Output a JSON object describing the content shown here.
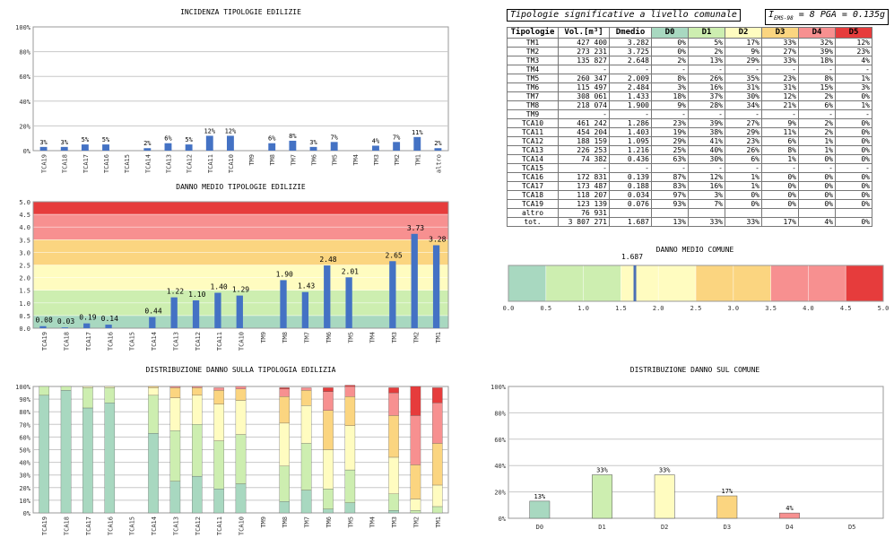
{
  "header": {
    "title": "Tipologie significative a livello comunale",
    "params_prefix": "I",
    "params_sub": "EMS-98",
    "params_rest": " = 8  PGA = 0.135g"
  },
  "colors": {
    "bar": "#4472c4",
    "D0": "#a8d8c0",
    "D1": "#cdeeb0",
    "D2": "#fffcc0",
    "D3": "#fbd580",
    "D4": "#f79090",
    "D5": "#e63c3c",
    "marker": "#4a6fb5"
  },
  "table": {
    "headers": [
      "Tipologie",
      "Vol.[m³]",
      "Dmedio",
      "D0",
      "D1",
      "D2",
      "D3",
      "D4",
      "D5"
    ],
    "rows": [
      [
        "TM1",
        "427 400",
        "3.282",
        "0%",
        "5%",
        "17%",
        "33%",
        "32%",
        "12%"
      ],
      [
        "TM2",
        "273 231",
        "3.725",
        "0%",
        "2%",
        "9%",
        "27%",
        "39%",
        "23%"
      ],
      [
        "TM3",
        "135 827",
        "2.648",
        "2%",
        "13%",
        "29%",
        "33%",
        "18%",
        "4%"
      ],
      [
        "TM4",
        "-",
        "-",
        "-",
        "-",
        "-",
        "-",
        "-",
        "-"
      ],
      [
        "TM5",
        "260 347",
        "2.009",
        "8%",
        "26%",
        "35%",
        "23%",
        "8%",
        "1%"
      ],
      [
        "TM6",
        "115 497",
        "2.484",
        "3%",
        "16%",
        "31%",
        "31%",
        "15%",
        "3%"
      ],
      [
        "TM7",
        "308 061",
        "1.433",
        "18%",
        "37%",
        "30%",
        "12%",
        "2%",
        "0%"
      ],
      [
        "TM8",
        "218 074",
        "1.900",
        "9%",
        "28%",
        "34%",
        "21%",
        "6%",
        "1%"
      ],
      [
        "TM9",
        "-",
        "-",
        "-",
        "-",
        "-",
        "-",
        "-",
        "-"
      ],
      [
        "TCA10",
        "461 242",
        "1.286",
        "23%",
        "39%",
        "27%",
        "9%",
        "2%",
        "0%"
      ],
      [
        "TCA11",
        "454 204",
        "1.403",
        "19%",
        "38%",
        "29%",
        "11%",
        "2%",
        "0%"
      ],
      [
        "TCA12",
        "188 159",
        "1.095",
        "29%",
        "41%",
        "23%",
        "6%",
        "1%",
        "0%"
      ],
      [
        "TCA13",
        "226 253",
        "1.216",
        "25%",
        "40%",
        "26%",
        "8%",
        "1%",
        "0%"
      ],
      [
        "TCA14",
        "74 382",
        "0.436",
        "63%",
        "30%",
        "6%",
        "1%",
        "0%",
        "0%"
      ],
      [
        "TCA15",
        "-",
        "-",
        "-",
        "-",
        "-",
        "-",
        "-",
        "-"
      ],
      [
        "TCA16",
        "172 831",
        "0.139",
        "87%",
        "12%",
        "1%",
        "0%",
        "0%",
        "0%"
      ],
      [
        "TCA17",
        "173 487",
        "0.188",
        "83%",
        "16%",
        "1%",
        "0%",
        "0%",
        "0%"
      ],
      [
        "TCA18",
        "118 207",
        "0.034",
        "97%",
        "3%",
        "0%",
        "0%",
        "0%",
        "0%"
      ],
      [
        "TCA19",
        "123 139",
        "0.076",
        "93%",
        "7%",
        "0%",
        "0%",
        "0%",
        "0%"
      ],
      [
        "altro",
        "76 931",
        "",
        "",
        "",
        "",
        "",
        "",
        ""
      ],
      [
        "tot.",
        "3 807 271",
        "1.687",
        "13%",
        "33%",
        "33%",
        "17%",
        "4%",
        "0%"
      ]
    ]
  },
  "chart_data": [
    {
      "id": "incidenza",
      "type": "bar",
      "title": "INCIDENZA TIPOLOGIE EDILIZIE",
      "categories": [
        "TCA19",
        "TCA18",
        "TCA17",
        "TCA16",
        "TCA15",
        "TCA14",
        "TCA13",
        "TCA12",
        "TCA11",
        "TCA10",
        "TM9",
        "TM8",
        "TM7",
        "TM6",
        "TM5",
        "TM4",
        "TM3",
        "TM2",
        "TM1",
        "altro"
      ],
      "values": [
        3,
        3,
        5,
        5,
        null,
        2,
        6,
        5,
        12,
        12,
        null,
        6,
        8,
        3,
        7,
        null,
        4,
        7,
        11,
        2
      ],
      "labels": [
        "3%",
        "3%",
        "5%",
        "5%",
        "",
        "2%",
        "6%",
        "5%",
        "12%",
        "12%",
        "",
        "6%",
        "8%",
        "3%",
        "7%",
        "",
        "4%",
        "7%",
        "11%",
        "2%"
      ],
      "yticks": [
        "0%",
        "20%",
        "40%",
        "60%",
        "80%",
        "100%"
      ],
      "ylim": [
        0,
        100
      ]
    },
    {
      "id": "danno_medio",
      "type": "bar",
      "title": "DANNO MEDIO TIPOLOGIE EDILIZIE",
      "categories": [
        "TCA19",
        "TCA18",
        "TCA17",
        "TCA16",
        "TCA15",
        "TCA14",
        "TCA13",
        "TCA12",
        "TCA11",
        "TCA10",
        "TM9",
        "TM8",
        "TM7",
        "TM6",
        "TM5",
        "TM4",
        "TM3",
        "TM2",
        "TM1"
      ],
      "values": [
        0.08,
        0.03,
        0.19,
        0.14,
        null,
        0.44,
        1.22,
        1.1,
        1.4,
        1.29,
        null,
        1.9,
        1.43,
        2.48,
        2.01,
        null,
        2.65,
        3.73,
        3.28
      ],
      "labels": [
        "0.08",
        "0.03",
        "0.19",
        "0.14",
        "",
        "0.44",
        "1.22",
        "1.10",
        "1.40",
        "1.29",
        "",
        "1.90",
        "1.43",
        "2.48",
        "2.01",
        "",
        "2.65",
        "3.73",
        "3.28"
      ],
      "yticks": [
        "0.0",
        "0.5",
        "1.0",
        "1.5",
        "2.0",
        "2.5",
        "3.0",
        "3.5",
        "4.0",
        "4.5",
        "5.0"
      ],
      "ylim": [
        0,
        5
      ],
      "bands": [
        [
          0,
          0.5,
          "D0"
        ],
        [
          0.5,
          1.5,
          "D1"
        ],
        [
          1.5,
          2.5,
          "D2"
        ],
        [
          2.5,
          3.5,
          "D3"
        ],
        [
          3.5,
          4.5,
          "D4"
        ],
        [
          4.5,
          5,
          "D5"
        ]
      ]
    },
    {
      "id": "distribuzione_tipologia",
      "type": "stacked-bar",
      "title": "DISTRIBUZIONE DANNO SULLA TIPOLOGIA EDILIZIA",
      "categories": [
        "TCA19",
        "TCA18",
        "TCA17",
        "TCA16",
        "TCA15",
        "TCA14",
        "TCA13",
        "TCA12",
        "TCA11",
        "TCA10",
        "TM9",
        "TM8",
        "TM7",
        "TM6",
        "TM5",
        "TM4",
        "TM3",
        "TM2",
        "TM1"
      ],
      "series_names": [
        "D0",
        "D1",
        "D2",
        "D3",
        "D4",
        "D5"
      ],
      "values": [
        [
          93,
          7,
          0,
          0,
          0,
          0
        ],
        [
          97,
          3,
          0,
          0,
          0,
          0
        ],
        [
          83,
          16,
          1,
          0,
          0,
          0
        ],
        [
          87,
          12,
          1,
          0,
          0,
          0
        ],
        null,
        [
          63,
          30,
          6,
          1,
          0,
          0
        ],
        [
          25,
          40,
          26,
          8,
          1,
          0
        ],
        [
          29,
          41,
          23,
          6,
          1,
          0
        ],
        [
          19,
          38,
          29,
          11,
          2,
          0
        ],
        [
          23,
          39,
          27,
          9,
          2,
          0
        ],
        null,
        [
          9,
          28,
          34,
          21,
          6,
          1
        ],
        [
          18,
          37,
          30,
          12,
          2,
          0
        ],
        [
          3,
          16,
          31,
          31,
          15,
          3
        ],
        [
          8,
          26,
          35,
          23,
          8,
          1
        ],
        null,
        [
          2,
          13,
          29,
          33,
          18,
          4
        ],
        [
          0,
          2,
          9,
          27,
          39,
          23
        ],
        [
          0,
          5,
          17,
          33,
          32,
          12
        ]
      ],
      "yticks": [
        "0%",
        "10%",
        "20%",
        "30%",
        "40%",
        "50%",
        "60%",
        "70%",
        "80%",
        "90%",
        "100%"
      ],
      "ylim": [
        0,
        100
      ]
    },
    {
      "id": "danno_medio_comune",
      "type": "gauge",
      "title": "DANNO MEDIO COMUNE",
      "value": 1.687,
      "value_label": "1.687",
      "ticks": [
        "0.0",
        "0.5",
        "1.0",
        "1.5",
        "2.0",
        "2.5",
        "3.0",
        "3.5",
        "4.0",
        "4.5",
        "5.0"
      ],
      "range": [
        0,
        5
      ],
      "bands": [
        [
          0,
          0.5,
          "D0"
        ],
        [
          0.5,
          1.5,
          "D1"
        ],
        [
          1.5,
          2.5,
          "D2"
        ],
        [
          2.5,
          3.5,
          "D3"
        ],
        [
          3.5,
          4.5,
          "D4"
        ],
        [
          4.5,
          5,
          "D5"
        ]
      ]
    },
    {
      "id": "distribuzione_comune",
      "type": "bar",
      "title": "DISTRIBUZIONE DANNO SUL COMUNE",
      "categories": [
        "D0",
        "D1",
        "D2",
        "D3",
        "D4",
        "D5"
      ],
      "values": [
        13,
        33,
        33,
        17,
        4,
        0
      ],
      "labels": [
        "13%",
        "33%",
        "33%",
        "17%",
        "4%",
        ""
      ],
      "yticks": [
        "0%",
        "20%",
        "40%",
        "60%",
        "80%",
        "100%"
      ],
      "ylim": [
        0,
        100
      ]
    }
  ]
}
